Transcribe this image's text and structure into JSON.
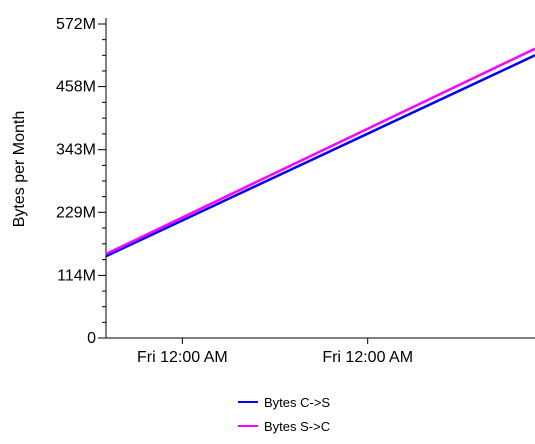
{
  "chart_data": {
    "type": "line",
    "title": "",
    "xlabel": "",
    "ylabel": "Bytes per Month",
    "ylim": [
      0,
      572
    ],
    "y_ticks": [
      0,
      114,
      229,
      343,
      458,
      572
    ],
    "y_tick_labels": [
      "0",
      "114M",
      "229M",
      "343M",
      "458M",
      "572M"
    ],
    "y_unit": "M",
    "x_tick_labels": [
      "Fri 12:00 AM",
      "Fri 12:00 AM"
    ],
    "x_tick_positions": [
      0.178,
      0.61
    ],
    "xlim": [
      0,
      1
    ],
    "grid": false,
    "legend_position": "bottom-center",
    "series": [
      {
        "name": "Bytes C->S",
        "color": "#0000ff",
        "x": [
          0,
          1
        ],
        "y": [
          149,
          515
        ]
      },
      {
        "name": "Bytes S->C",
        "color": "#ff00ff",
        "x": [
          0,
          1
        ],
        "y": [
          153,
          527
        ]
      }
    ]
  }
}
